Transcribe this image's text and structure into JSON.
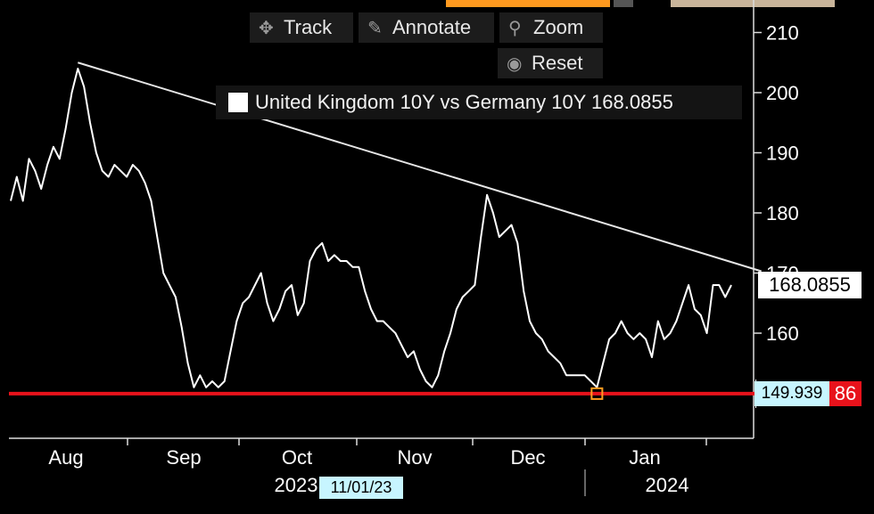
{
  "toolbar": {
    "track_label": "Track",
    "annotate_label": "Annotate",
    "zoom_label": "Zoom",
    "reset_label": "Reset"
  },
  "legend": {
    "label": "United Kingdom 10Y vs Germany 10Y 168.0855"
  },
  "tags": {
    "last_value": "168.0855",
    "hline_value": "149.939",
    "hline_suffix": "86",
    "cursor_date": "11/01/23"
  },
  "colors": {
    "background": "#000000",
    "series": "#ffffff",
    "hline": "#e8121b",
    "highlight_tag": "#c7f5ff",
    "accent_orange": "#ff9a1f"
  },
  "chart_data": {
    "type": "line",
    "y_ticks": [
      "160",
      "170",
      "180",
      "190",
      "200",
      "210"
    ],
    "y_tick_values": [
      160,
      170,
      180,
      190,
      200,
      210
    ],
    "ylim": [
      147,
      214
    ],
    "month_labels": [
      "Aug",
      "Sep",
      "Oct",
      "Nov",
      "Dec",
      "Jan"
    ],
    "year_labels": [
      "2023",
      "2024"
    ],
    "series": [
      {
        "name": "United Kingdom 10Y vs Germany 10Y",
        "values": [
          182,
          186,
          182,
          189,
          187,
          184,
          188,
          191,
          189,
          194,
          200,
          204,
          201,
          195,
          190,
          187,
          186,
          188,
          187,
          186,
          188,
          187,
          185,
          182,
          176,
          170,
          168,
          166,
          161,
          155,
          151,
          153,
          151,
          152,
          151,
          152,
          157,
          162,
          165,
          166,
          168,
          170,
          165,
          162,
          164,
          167,
          168,
          163,
          165,
          172,
          174,
          175,
          172,
          173,
          172,
          172,
          171,
          171,
          167,
          164,
          162,
          162,
          161,
          160,
          158,
          156,
          157,
          154,
          152,
          151,
          153,
          157,
          160,
          164,
          166,
          167,
          168,
          176,
          183,
          180,
          176,
          177,
          178,
          175,
          167,
          162,
          160,
          159,
          157,
          156,
          155,
          153,
          153,
          153,
          153,
          152,
          151,
          155,
          159,
          160,
          162,
          160,
          159,
          160,
          159,
          156,
          162,
          159,
          160,
          162,
          165,
          168,
          164,
          163,
          160,
          168,
          168,
          166,
          168
        ],
        "color": "#ffffff"
      }
    ],
    "trendline": {
      "from": [
        11,
        205
      ],
      "to": [
        120,
        170
      ]
    },
    "hline": {
      "value": 149.939
    },
    "marker_index": 96,
    "cursor_index": 59,
    "grid": false,
    "legend_position": "top-right"
  }
}
